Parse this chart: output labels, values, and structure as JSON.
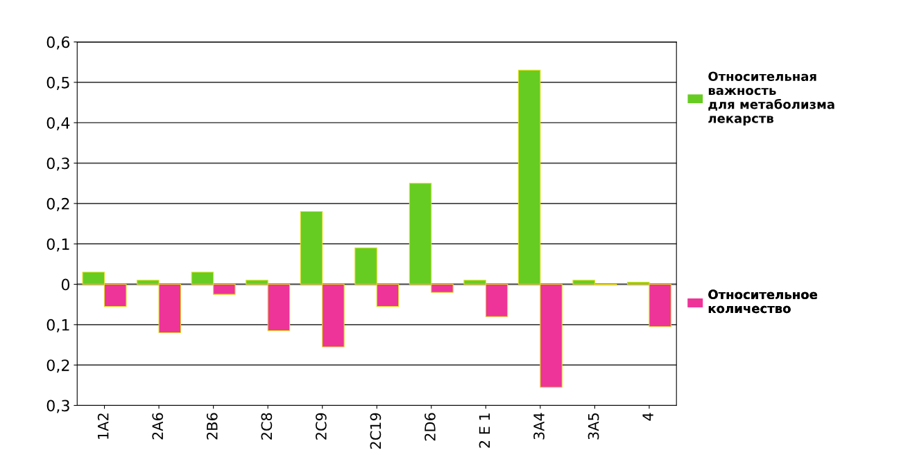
{
  "chart_data": {
    "type": "bar",
    "categories": [
      "1A2",
      "2A6",
      "2B6",
      "2C8",
      "2C9",
      "2C19",
      "2D6",
      "2 E 1",
      "3A4",
      "3A5",
      "4"
    ],
    "series": [
      {
        "name": "Относительная\nважность\nдля метаболизма\nлекарств",
        "color": "#66cc22",
        "values": [
          0.03,
          0.01,
          0.03,
          0.01,
          0.18,
          0.09,
          0.25,
          0.01,
          0.53,
          0.01,
          0.005
        ]
      },
      {
        "name": "Относительное\nколичество",
        "color": "#ee3399",
        "values": [
          -0.055,
          -0.12,
          -0.025,
          -0.115,
          -0.155,
          -0.055,
          -0.02,
          -0.08,
          -0.255,
          -0.002,
          -0.105
        ]
      }
    ],
    "ylim": [
      -0.3,
      0.6
    ],
    "yticks": [
      {
        "value": 0.6,
        "label": "0,6"
      },
      {
        "value": 0.5,
        "label": "0,5"
      },
      {
        "value": 0.4,
        "label": "0,4"
      },
      {
        "value": 0.3,
        "label": "0,3"
      },
      {
        "value": 0.2,
        "label": "0,2"
      },
      {
        "value": 0.1,
        "label": "0,1"
      },
      0,
      {
        "value": -0.1,
        "label": "0,1"
      },
      {
        "value": -0.2,
        "label": "0,2"
      },
      {
        "value": -0.3,
        "label": "0,3"
      }
    ],
    "grid": "y",
    "legend": "right"
  }
}
